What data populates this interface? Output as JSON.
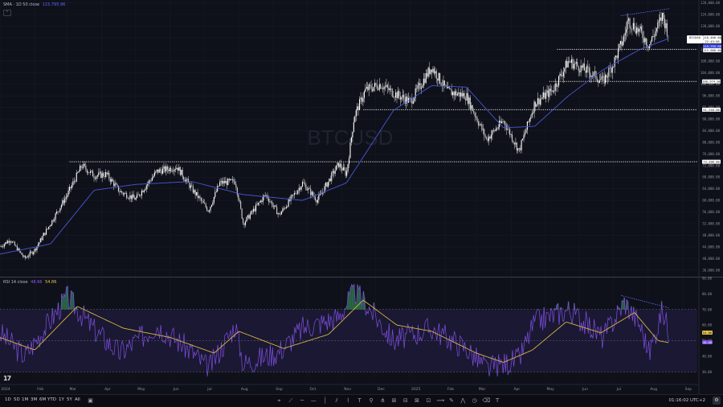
{
  "watermark": "BTCUSD",
  "sma_legend": {
    "label": "SMA · 1D 50 close",
    "value": "115,795.96",
    "color": "#5b6bff"
  },
  "rsi_legend": {
    "label": "RSI 14 close",
    "value1": "48.66",
    "value2": "54.86",
    "color1": "#8a5cf6",
    "color2": "#e3c447"
  },
  "price_labels": {
    "symbol": "BTCUSD",
    "last": "116,466.88",
    "countdown": "22:43:56",
    "sma_value": "115,795.96",
    "level_112": "112,000.00",
    "rsi_val": "54.86",
    "rsi_ma_val": "48.66"
  },
  "bottom_bar": {
    "ranges": [
      "1D",
      "5D",
      "1M",
      "3M",
      "6M",
      "YTD",
      "1Y",
      "5Y",
      "All"
    ],
    "clock": "01:16:02 UTC+2",
    "tools": [
      "cursor-icon",
      "trend-line-icon",
      "horizontal-ray-icon",
      "horizontal-line-icon",
      "vertical-line-icon",
      "parallel-channel-icon",
      "fib-icon",
      "text-icon",
      "pin-icon",
      "pitchfork-icon",
      "gann-icon",
      "long-position-icon",
      "short-position-icon",
      "date-range-icon",
      "path-icon",
      "brush-icon",
      "pattern-icon",
      "cycle-icon",
      "eraser-icon",
      "measure-icon"
    ]
  },
  "chart_data": [
    {
      "type": "candlestick",
      "title": "BTCUSD",
      "series": [
        {
          "name": "BTCUSD",
          "x": [
            "2024-01-01",
            "2024-01-10",
            "2024-01-23",
            "2024-02-01",
            "2024-02-15",
            "2024-03-01",
            "2024-03-14",
            "2024-03-25",
            "2024-04-05",
            "2024-04-17",
            "2024-05-01",
            "2024-05-20",
            "2024-06-07",
            "2024-06-20",
            "2024-07-05",
            "2024-07-15",
            "2024-07-29",
            "2024-08-05",
            "2024-08-25",
            "2024-09-06",
            "2024-09-27",
            "2024-10-10",
            "2024-10-29",
            "2024-11-05",
            "2024-11-12",
            "2024-11-22",
            "2024-12-05",
            "2024-12-17",
            "2025-01-01",
            "2025-01-20",
            "2025-02-03",
            "2025-02-20",
            "2025-03-10",
            "2025-03-25",
            "2025-04-08",
            "2025-04-22",
            "2025-05-08",
            "2025-05-22",
            "2025-06-10",
            "2025-06-22",
            "2025-07-01",
            "2025-07-11",
            "2025-07-14",
            "2025-07-25",
            "2025-08-02",
            "2025-08-14",
            "2025-08-20"
          ],
          "values": [
            44000,
            46500,
            40000,
            43000,
            52000,
            62000,
            72000,
            68500,
            69000,
            63000,
            60500,
            70000,
            71500,
            64000,
            56500,
            66000,
            66500,
            52000,
            62000,
            55000,
            66000,
            60000,
            72500,
            69000,
            89000,
            98000,
            100000,
            97000,
            94000,
            106000,
            97500,
            96000,
            81000,
            87500,
            77000,
            93500,
            98000,
            108000,
            104000,
            101000,
            107000,
            116500,
            122000,
            118000,
            113500,
            123500,
            116466
          ]
        },
        {
          "name": "SMA · 1D 50 close",
          "x": [
            "2024-01-01",
            "2024-02-15",
            "2024-03-25",
            "2024-05-01",
            "2024-06-20",
            "2024-08-05",
            "2024-09-27",
            "2024-11-05",
            "2024-12-17",
            "2025-01-20",
            "2025-02-20",
            "2025-03-25",
            "2025-04-22",
            "2025-05-22",
            "2025-06-22",
            "2025-07-25",
            "2025-08-20"
          ],
          "values": [
            41500,
            45000,
            63500,
            65500,
            66500,
            62000,
            60000,
            66000,
            91000,
            99500,
            99000,
            85000,
            85500,
            96000,
            105000,
            112000,
            115796
          ]
        }
      ],
      "levels": [
        112000,
        100974,
        91240,
        73288
      ],
      "xlabels": [
        "2024",
        "Feb",
        "Mar",
        "Apr",
        "May",
        "Jun",
        "Jul",
        "Aug",
        "Sep",
        "Oct",
        "Nov",
        "Dec",
        "2025",
        "Feb",
        "Mar",
        "Apr",
        "May",
        "Jun",
        "Jul",
        "Aug",
        "Sep"
      ],
      "yticks": [
        36000,
        40000,
        44000,
        48000,
        52000,
        56000,
        60000,
        64000,
        68000,
        72000,
        76000,
        80000,
        84000,
        88000,
        92000,
        96000,
        100000,
        104000,
        108000,
        112000,
        116000,
        120000,
        124000,
        128000
      ],
      "ylim": [
        34000,
        129000
      ]
    },
    {
      "type": "line",
      "title": "RSI 14 close",
      "series": [
        {
          "name": "RSI 14",
          "x": [
            "2024-01-01",
            "2024-01-23",
            "2024-03-01",
            "2024-03-25",
            "2024-04-17",
            "2024-05-20",
            "2024-06-20",
            "2024-07-05",
            "2024-07-29",
            "2024-08-05",
            "2024-09-06",
            "2024-09-27",
            "2024-10-29",
            "2024-11-12",
            "2024-11-22",
            "2024-12-17",
            "2025-01-20",
            "2025-02-20",
            "2025-03-10",
            "2025-04-08",
            "2025-04-22",
            "2025-05-22",
            "2025-06-22",
            "2025-07-11",
            "2025-07-25",
            "2025-08-02",
            "2025-08-14",
            "2025-08-20"
          ],
          "values": [
            55,
            40,
            78,
            57,
            42,
            60,
            43,
            32,
            60,
            35,
            43,
            58,
            65,
            82,
            74,
            50,
            58,
            45,
            32,
            38,
            62,
            70,
            52,
            75,
            60,
            42,
            70,
            54.86
          ]
        },
        {
          "name": "RSI MA",
          "x": [
            "2024-01-01",
            "2024-02-01",
            "2024-03-10",
            "2024-04-20",
            "2024-06-01",
            "2024-07-10",
            "2024-08-01",
            "2024-09-10",
            "2024-10-20",
            "2024-11-20",
            "2024-12-20",
            "2025-01-20",
            "2025-03-01",
            "2025-03-25",
            "2025-04-20",
            "2025-05-20",
            "2025-06-20",
            "2025-07-20",
            "2025-08-10",
            "2025-08-20"
          ],
          "values": [
            52,
            44,
            72,
            58,
            52,
            42,
            56,
            45,
            54,
            76,
            60,
            56,
            42,
            36,
            44,
            62,
            55,
            68,
            50,
            48.66
          ]
        }
      ],
      "bands": [
        70,
        50,
        30
      ],
      "yticks": [
        30,
        40,
        50,
        60,
        70,
        80,
        90
      ],
      "ylim": [
        26,
        90
      ]
    }
  ]
}
